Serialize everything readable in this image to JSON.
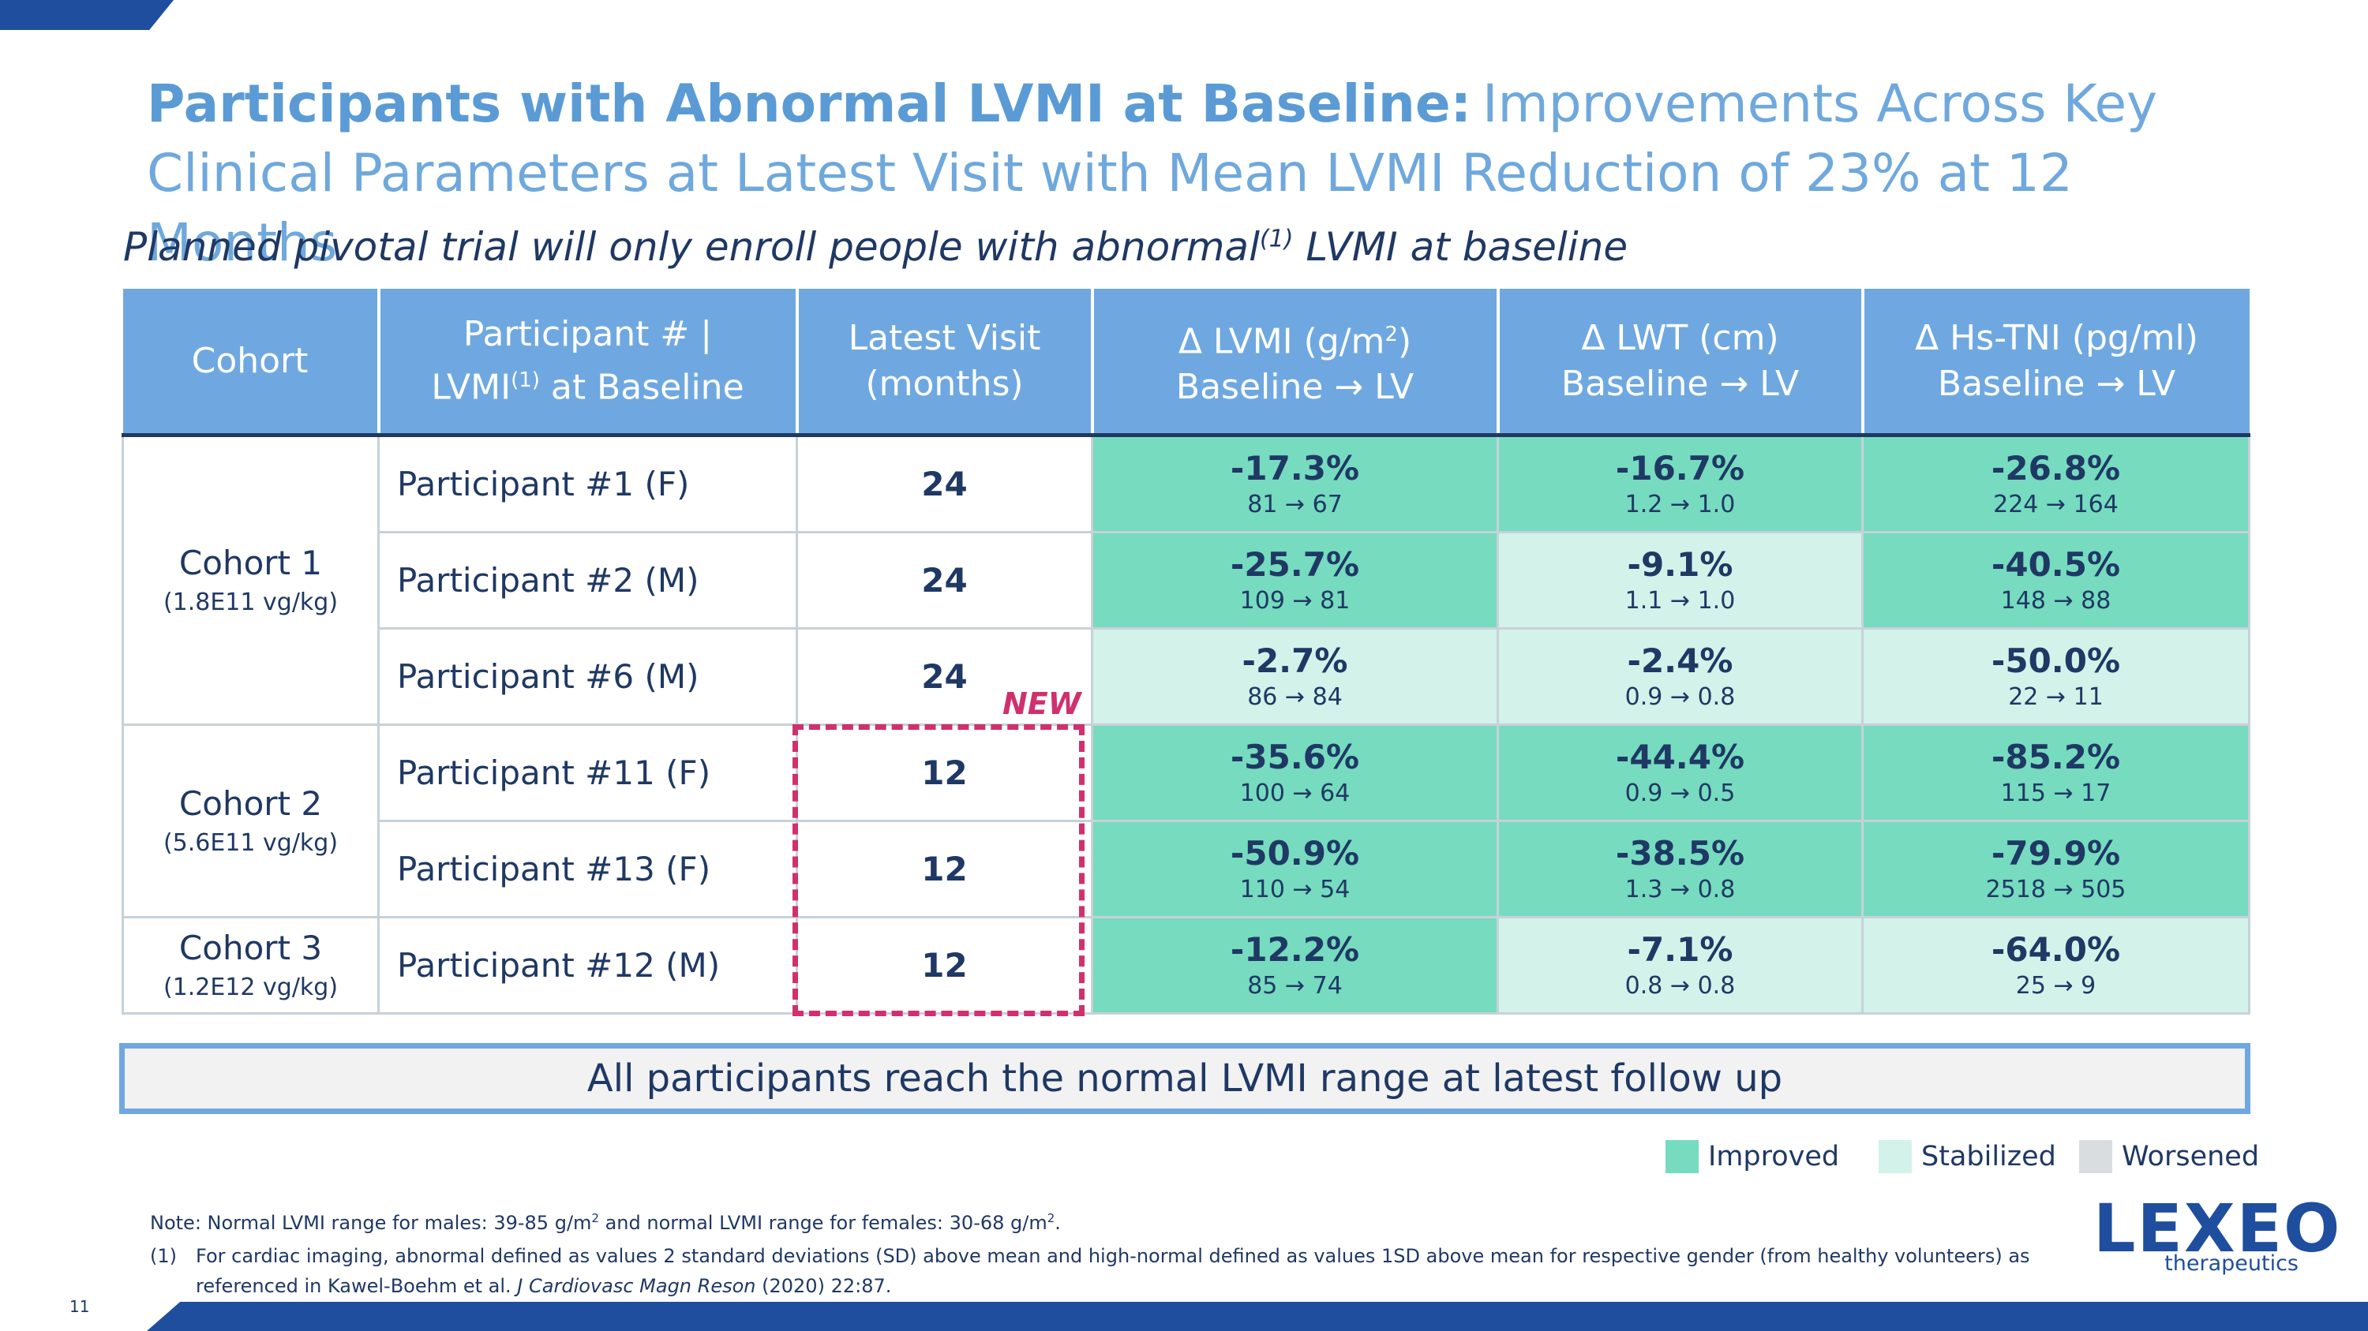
{
  "title": {
    "bold": "Participants with Abnormal LVMI at Baseline:",
    "rest": "Improvements Across Key Clinical Parameters at Latest Visit with Mean LVMI Reduction of 23% at 12 Months"
  },
  "subtitle": {
    "pre": "Planned pivotal trial will only enroll people with abnormal",
    "sup": "(1)",
    "post": " LVMI at baseline"
  },
  "table": {
    "headers": {
      "cohort": "Cohort",
      "participant_line1": "Participant # |",
      "participant_line2_pre": "LVMI",
      "participant_line2_sup": "(1)",
      "participant_line2_post": " at Baseline",
      "visit_line1": "Latest Visit",
      "visit_line2": "(months)",
      "lvmi_line1_pre": "Δ LVMI (g/m",
      "lvmi_line1_sup": "2",
      "lvmi_line1_post": ")",
      "lwt_line1": "Δ LWT (cm)",
      "tni_line1": "Δ Hs-TNI (pg/ml)",
      "baseline_lv": "Baseline → LV"
    },
    "cohorts": [
      {
        "name": "Cohort 1",
        "dose": "(1.8E11 vg/kg)"
      },
      {
        "name": "Cohort 2",
        "dose": "(5.6E11 vg/kg)"
      },
      {
        "name": "Cohort 3",
        "dose": "(1.2E12 vg/kg)"
      }
    ],
    "rows": [
      {
        "participant": "Participant #1 (F)",
        "visit": "24",
        "lvmi": {
          "pct": "-17.3%",
          "range": "81 → 67",
          "status": "improved"
        },
        "lwt": {
          "pct": "-16.7%",
          "range": "1.2 → 1.0",
          "status": "improved"
        },
        "tni": {
          "pct": "-26.8%",
          "range": "224 → 164",
          "status": "improved"
        }
      },
      {
        "participant": "Participant #2 (M)",
        "visit": "24",
        "lvmi": {
          "pct": "-25.7%",
          "range": "109 → 81",
          "status": "improved"
        },
        "lwt": {
          "pct": "-9.1%",
          "range": "1.1 → 1.0",
          "status": "stabilized"
        },
        "tni": {
          "pct": "-40.5%",
          "range": "148 → 88",
          "status": "improved"
        }
      },
      {
        "participant": "Participant #6 (M)",
        "visit": "24",
        "lvmi": {
          "pct": "-2.7%",
          "range": "86 → 84",
          "status": "stabilized"
        },
        "lwt": {
          "pct": "-2.4%",
          "range": "0.9 → 0.8",
          "status": "stabilized"
        },
        "tni": {
          "pct": "-50.0%",
          "range": "22 → 11",
          "status": "stabilized"
        }
      },
      {
        "participant": "Participant #11 (F)",
        "visit": "12",
        "lvmi": {
          "pct": "-35.6%",
          "range": "100 → 64",
          "status": "improved"
        },
        "lwt": {
          "pct": "-44.4%",
          "range": "0.9 → 0.5",
          "status": "improved"
        },
        "tni": {
          "pct": "-85.2%",
          "range": "115 → 17",
          "status": "improved"
        }
      },
      {
        "participant": "Participant #13 (F)",
        "visit": "12",
        "lvmi": {
          "pct": "-50.9%",
          "range": "110 → 54",
          "status": "improved"
        },
        "lwt": {
          "pct": "-38.5%",
          "range": "1.3 → 0.8",
          "status": "improved"
        },
        "tni": {
          "pct": "-79.9%",
          "range": "2518 → 505",
          "status": "improved"
        }
      },
      {
        "participant": "Participant #12 (M)",
        "visit": "12",
        "lvmi": {
          "pct": "-12.2%",
          "range": "85 → 74",
          "status": "improved"
        },
        "lwt": {
          "pct": "-7.1%",
          "range": "0.8 → 0.8",
          "status": "stabilized"
        },
        "tni": {
          "pct": "-64.0%",
          "range": "25 → 9",
          "status": "stabilized"
        }
      }
    ]
  },
  "new_label": "NEW",
  "callout": "All participants reach the normal LVMI range at latest follow up",
  "legend": {
    "improved": "Improved",
    "stabilized": "Stabilized",
    "worsened": "Worsened"
  },
  "colors": {
    "improved": "#76dbbf",
    "stabilized": "#d3f2ea",
    "worsened": "#d9dde0",
    "header": "#6fa8e0",
    "navy": "#1f4e9e",
    "new_highlight": "#d0306e"
  },
  "note": {
    "t1": "Note: Normal LVMI range for males: 39-85 g/m",
    "s1": "2",
    "t2": " and normal LVMI range for females: 30-68 g/m",
    "s2": "2",
    "t3": "."
  },
  "footnote": {
    "num": "(1)",
    "text_pre": "For cardiac imaging, abnormal defined as values 2 standard deviations (SD) above mean and high-normal defined as values 1SD above mean for respective gender (from healthy volunteers) as referenced in Kawel‑Boehm et al. ",
    "journal": "J Cardiovasc Magn Reson",
    "text_post": " (2020) 22:87."
  },
  "page_number": "11",
  "logo": {
    "main": "LEXEO",
    "sub": "therapeutics"
  }
}
